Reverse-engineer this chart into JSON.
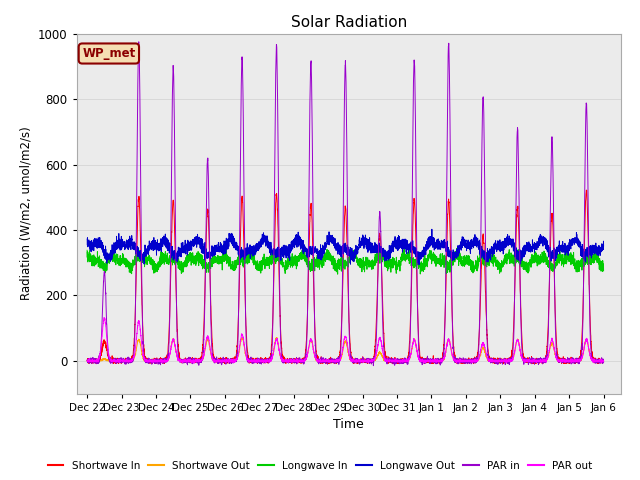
{
  "title": "Solar Radiation",
  "xlabel": "Time",
  "ylabel": "Radiation (W/m2, umol/m2/s)",
  "ylim": [
    -100,
    1000
  ],
  "annotation_text": "WP_met",
  "annotation_color": "#8B0000",
  "annotation_bg": "#F5DEB3",
  "grid_color": "#D8D8D8",
  "bg_color": "#EBEBEB",
  "series": {
    "shortwave_in": {
      "label": "Shortwave In",
      "color": "#FF0000"
    },
    "shortwave_out": {
      "label": "Shortwave Out",
      "color": "#FFA500"
    },
    "longwave_in": {
      "label": "Longwave In",
      "color": "#00CC00"
    },
    "longwave_out": {
      "label": "Longwave Out",
      "color": "#0000CC"
    },
    "par_in": {
      "label": "PAR in",
      "color": "#9900CC"
    },
    "par_out": {
      "label": "PAR out",
      "color": "#FF00FF"
    }
  },
  "tick_labels": [
    "Dec 22",
    "Dec 23",
    "Dec 24",
    "Dec 25",
    "Dec 26",
    "Dec 27",
    "Dec 28",
    "Dec 29",
    "Dec 30",
    "Dec 31",
    "Jan 1",
    "Jan 2",
    "Jan 3",
    "Jan 4",
    "Jan 5",
    "Jan 6"
  ],
  "num_days": 15,
  "pts_per_day": 288,
  "sw_in_peaks": [
    60,
    500,
    490,
    460,
    500,
    510,
    480,
    470,
    390,
    490,
    490,
    380,
    470,
    450,
    520
  ],
  "sw_out_peaks": [
    5,
    65,
    65,
    65,
    70,
    70,
    65,
    60,
    25,
    65,
    65,
    40,
    65,
    55,
    65
  ],
  "par_in_peaks": [
    270,
    970,
    900,
    615,
    930,
    965,
    915,
    910,
    455,
    920,
    970,
    810,
    710,
    680,
    790
  ],
  "par_out_peaks": [
    130,
    120,
    65,
    75,
    80,
    65,
    65,
    75,
    70,
    65,
    65,
    55,
    65,
    65,
    65
  ],
  "lw_in_base": 305,
  "lw_out_base": 345
}
